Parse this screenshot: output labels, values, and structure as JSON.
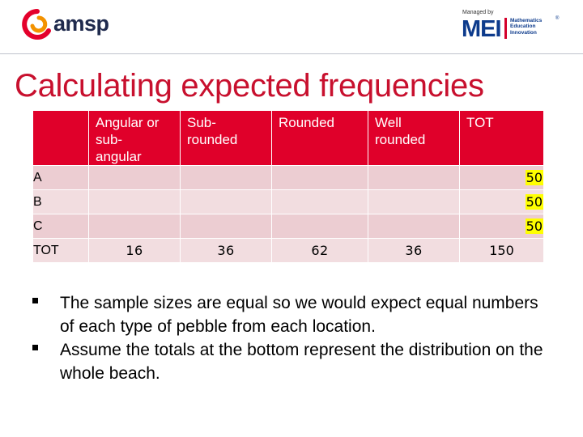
{
  "header": {
    "brand_left": "amsp",
    "brand_right": {
      "managed_by": "Managed by",
      "word": "MEI",
      "lines": [
        "Mathematics",
        "Education",
        "Innovation"
      ],
      "registered": "®"
    }
  },
  "title": "Calculating expected frequencies",
  "table": {
    "columns": [
      "",
      "Angular or sub-angular",
      "Sub-rounded",
      "Rounded",
      "Well rounded",
      "TOT"
    ],
    "column_lines": [
      [],
      [
        "Angular or",
        "sub-",
        "angular"
      ],
      [
        "Sub-",
        "rounded"
      ],
      [
        "Rounded"
      ],
      [
        "Well",
        "rounded"
      ],
      [
        "TOT"
      ]
    ],
    "rows": [
      {
        "label": "A",
        "cells": [
          "",
          "",
          "",
          ""
        ],
        "total": "50"
      },
      {
        "label": "B",
        "cells": [
          "",
          "",
          "",
          ""
        ],
        "total": "50"
      },
      {
        "label": "C",
        "cells": [
          "",
          "",
          "",
          ""
        ],
        "total": "50"
      },
      {
        "label": "TOT",
        "cells": [
          "16",
          "36",
          "62",
          "36"
        ],
        "total": "150"
      }
    ]
  },
  "notes": [
    "The sample sizes are equal so we would expect equal numbers of each type of pebble from each location.",
    "Assume the totals at the bottom represent the distribution on the whole beach."
  ],
  "colors": {
    "accent": "#c8102e",
    "header_fill": "#e0002a",
    "row_fill": "#f2dde0",
    "highlight": "#ffff00"
  }
}
